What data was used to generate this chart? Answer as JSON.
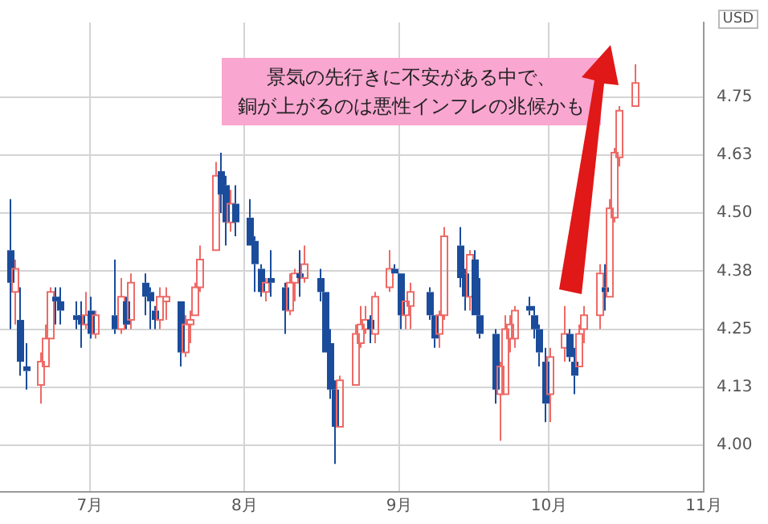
{
  "chart_data": {
    "type": "candlestick",
    "ylabel": "USD",
    "annotations": [
      "景気の先行きに不安がある中で、",
      "銅が上がるのは悪性インフレの兆候かも"
    ],
    "colors": [
      "#1b4c9b",
      "#ee6a66",
      "#1b4c9b",
      "#1b4c9b",
      "#ee6a66",
      "#ee6a66",
      "#ee6a66",
      "#1b4c9b",
      "#1b4c9b",
      "#1b4c9b",
      "#1b4c9b",
      "#ee6a66",
      "#1b4c9b",
      "#ee6a66",
      "#1b4c9b",
      "#ee6a66",
      "#1b4c9b",
      "#ee6a66",
      "#1b4c9b",
      "#1b4c9b",
      "#1b4c9b",
      "#ee6a66",
      "#ee6a66",
      "#1b4c9b",
      "#ee6a66",
      "#ee6a66",
      "#ee6a66",
      "#ee6a66",
      "#ee6a66",
      "#1b4c9b",
      "#1b4c9b",
      "#ee6a66",
      "#1b4c9b",
      "#1b4c9b",
      "#1b4c9b",
      "#1b4c9b",
      "#ee6a66",
      "#1b4c9b",
      "#1b4c9b",
      "#ee6a66",
      "#ee6a66",
      "#1b4c9b",
      "#ee6a66",
      "#1b4c9b",
      "#1b4c9b",
      "#1b4c9b",
      "#1b4c9b",
      "#ee6a66",
      "#ee6a66",
      "#ee6a66",
      "#ee6a66",
      "#1b4c9b",
      "#ee6a66",
      "#ee6a66",
      "#1b4c9b",
      "#1b4c9b",
      "#ee6a66",
      "#ee6a66",
      "#1b4c9b",
      "#1b4c9b",
      "#ee6a66",
      "#ee6a66",
      "#1b4c9b",
      "#1b4c9b",
      "#ee6a66",
      "#1b4c9b",
      "#1b4c9b",
      "#1b4c9b",
      "#ee6a66",
      "#ee6a66",
      "#ee6a66",
      "#ee6a66",
      "#1b4c9b",
      "#1b4c9b",
      "#1b4c9b",
      "#1b4c9b",
      "#ee6a66",
      "#ee6a66",
      "#1b4c9b",
      "#1b4c9b",
      "#ee6a66",
      "#ee6a66",
      "#ee6a66",
      "#1b4c9b",
      "#ee6a66",
      "#ee6a66",
      "#ee6a66",
      "#ee6a66"
    ],
    "x": [
      "--06-15",
      "--06-16",
      "--06-17",
      "--06-18",
      "--06-21",
      "--06-22",
      "--06-23",
      "--06-24",
      "--06-25",
      "--06-28",
      "--06-29",
      "--06-30",
      "--07-01",
      "--07-02",
      "--07-06",
      "--07-07",
      "--07-08",
      "--07-09",
      "--07-12",
      "--07-13",
      "--07-14",
      "--07-15",
      "--07-16",
      "--07-19",
      "--07-20",
      "--07-21",
      "--07-22",
      "--07-23",
      "--07-26",
      "--07-27",
      "--07-28",
      "--07-29",
      "--07-30",
      "--08-02",
      "--08-03",
      "--08-04",
      "--08-05",
      "--08-06",
      "--08-09",
      "--08-10",
      "--08-11",
      "--08-12",
      "--08-13",
      "--08-16",
      "--08-17",
      "--08-18",
      "--08-19",
      "--08-20",
      "--08-23",
      "--08-24",
      "--08-25",
      "--08-26",
      "--08-27",
      "--08-30",
      "--08-31",
      "--09-01",
      "--09-02",
      "--09-03",
      "--09-07",
      "--09-08",
      "--09-09",
      "--09-10",
      "--09-13",
      "--09-14",
      "--09-15",
      "--09-16",
      "--09-17",
      "--09-20",
      "--09-21",
      "--09-22",
      "--09-23",
      "--09-24",
      "--09-27",
      "--09-28",
      "--09-29",
      "--09-30",
      "--10-01",
      "--10-04",
      "--10-05",
      "--10-06",
      "--10-07",
      "--10-08",
      "--10-11",
      "--10-12",
      "--10-13",
      "--10-14",
      "--10-15",
      "--10-18"
    ],
    "ohlc": [
      [
        4.42,
        4.53,
        4.25,
        4.35
      ],
      [
        4.33,
        4.4,
        4.26,
        4.38
      ],
      [
        4.27,
        4.34,
        4.15,
        4.18
      ],
      [
        4.17,
        4.22,
        4.12,
        4.16
      ],
      [
        4.13,
        4.2,
        4.09,
        4.18
      ],
      [
        4.17,
        4.26,
        4.17,
        4.23
      ],
      [
        4.23,
        4.34,
        4.23,
        4.33
      ],
      [
        4.32,
        4.34,
        4.26,
        4.31
      ],
      [
        4.31,
        4.34,
        4.26,
        4.29
      ],
      [
        4.28,
        4.31,
        4.25,
        4.27
      ],
      [
        4.28,
        4.31,
        4.21,
        4.26
      ],
      [
        4.26,
        4.33,
        4.25,
        4.28
      ],
      [
        4.29,
        4.32,
        4.23,
        4.24
      ],
      [
        4.24,
        4.29,
        4.23,
        4.28
      ],
      [
        4.28,
        4.4,
        4.24,
        4.25
      ],
      [
        4.25,
        4.36,
        4.24,
        4.32
      ],
      [
        4.31,
        4.32,
        4.25,
        4.26
      ],
      [
        4.27,
        4.37,
        4.25,
        4.35
      ],
      [
        4.35,
        4.37,
        4.28,
        4.32
      ],
      [
        4.33,
        4.34,
        4.25,
        4.31
      ],
      [
        4.29,
        4.3,
        4.25,
        4.27
      ],
      [
        4.27,
        4.34,
        4.25,
        4.32
      ],
      [
        4.31,
        4.34,
        4.27,
        4.32
      ],
      [
        4.31,
        4.31,
        4.17,
        4.2
      ],
      [
        4.2,
        4.28,
        4.19,
        4.26
      ],
      [
        4.26,
        4.29,
        4.22,
        4.27
      ],
      [
        4.28,
        4.35,
        4.28,
        4.34
      ],
      [
        4.34,
        4.43,
        4.33,
        4.4
      ],
      [
        4.42,
        4.61,
        4.42,
        4.58
      ],
      [
        4.59,
        4.63,
        4.5,
        4.54
      ],
      [
        4.56,
        4.58,
        4.43,
        4.48
      ],
      [
        4.48,
        4.55,
        4.46,
        4.52
      ],
      [
        4.52,
        4.56,
        4.45,
        4.48
      ],
      [
        4.49,
        4.53,
        4.43,
        4.43
      ],
      [
        4.44,
        4.45,
        4.33,
        4.39
      ],
      [
        4.38,
        4.39,
        4.32,
        4.33
      ],
      [
        4.33,
        4.36,
        4.31,
        4.35
      ],
      [
        4.36,
        4.42,
        4.32,
        4.35
      ],
      [
        4.34,
        4.35,
        4.24,
        4.29
      ],
      [
        4.29,
        4.37,
        4.28,
        4.35
      ],
      [
        4.35,
        4.38,
        4.31,
        4.37
      ],
      [
        4.37,
        4.42,
        4.32,
        4.36
      ],
      [
        4.36,
        4.43,
        4.35,
        4.39
      ],
      [
        4.36,
        4.38,
        4.31,
        4.33
      ],
      [
        4.33,
        4.33,
        4.2,
        4.2
      ],
      [
        4.22,
        4.25,
        4.1,
        4.12
      ],
      [
        4.12,
        4.14,
        3.96,
        4.04
      ],
      [
        4.04,
        4.15,
        4.04,
        4.14
      ],
      [
        4.13,
        4.26,
        4.13,
        4.24
      ],
      [
        4.22,
        4.3,
        4.21,
        4.26
      ],
      [
        4.25,
        4.3,
        4.24,
        4.27
      ],
      [
        4.27,
        4.28,
        4.22,
        4.25
      ],
      [
        4.24,
        4.33,
        4.22,
        4.32
      ],
      [
        4.34,
        4.42,
        4.33,
        4.38
      ],
      [
        4.38,
        4.39,
        4.37,
        4.37
      ],
      [
        4.37,
        4.37,
        4.25,
        4.28
      ],
      [
        4.28,
        4.31,
        4.25,
        4.31
      ],
      [
        4.3,
        4.35,
        4.25,
        4.33
      ],
      [
        4.33,
        4.34,
        4.27,
        4.28
      ],
      [
        4.28,
        4.28,
        4.21,
        4.23
      ],
      [
        4.24,
        4.29,
        4.21,
        4.28
      ],
      [
        4.28,
        4.47,
        4.27,
        4.45
      ],
      [
        4.43,
        4.47,
        4.34,
        4.36
      ],
      [
        4.37,
        4.38,
        4.29,
        4.32
      ],
      [
        4.32,
        4.42,
        4.29,
        4.41
      ],
      [
        4.4,
        4.42,
        4.28,
        4.28
      ],
      [
        4.28,
        4.36,
        4.23,
        4.24
      ],
      [
        4.24,
        4.25,
        4.09,
        4.12
      ],
      [
        4.11,
        4.18,
        4.01,
        4.17
      ],
      [
        4.11,
        4.28,
        4.11,
        4.25
      ],
      [
        4.23,
        4.28,
        4.2,
        4.26
      ],
      [
        4.23,
        4.3,
        4.21,
        4.29
      ],
      [
        4.3,
        4.32,
        4.28,
        4.29
      ],
      [
        4.28,
        4.3,
        4.23,
        4.25
      ],
      [
        4.25,
        4.26,
        4.17,
        4.2
      ],
      [
        4.18,
        4.21,
        4.05,
        4.09
      ],
      [
        4.11,
        4.21,
        4.05,
        4.19
      ],
      [
        4.21,
        4.3,
        4.18,
        4.24
      ],
      [
        4.24,
        4.25,
        4.18,
        4.19
      ],
      [
        4.18,
        4.21,
        4.11,
        4.15
      ],
      [
        4.17,
        4.26,
        4.17,
        4.24
      ],
      [
        4.25,
        4.3,
        4.22,
        4.28
      ],
      [
        4.28,
        4.39,
        4.25,
        4.37
      ],
      [
        4.34,
        4.39,
        4.29,
        4.33
      ],
      [
        4.32,
        4.53,
        4.32,
        4.51
      ],
      [
        4.49,
        4.64,
        4.48,
        4.63
      ],
      [
        4.62,
        4.73,
        4.6,
        4.72
      ],
      [
        4.73,
        4.82,
        4.73,
        4.78
      ]
    ],
    "xlim": [
      "--06-13",
      "--11-01"
    ],
    "xticks": [
      {
        "value": "--07-01",
        "label": "7月"
      },
      {
        "value": "--08-01",
        "label": "8月"
      },
      {
        "value": "--09-01",
        "label": "9月"
      },
      {
        "value": "--10-01",
        "label": "10月"
      },
      {
        "value": "--11-01",
        "label": "11月"
      }
    ],
    "ylim": [
      3.9,
      4.91
    ],
    "yticks": [
      {
        "value": 4.0,
        "label": "4.00"
      },
      {
        "value": 4.125,
        "label": "4.13"
      },
      {
        "value": 4.25,
        "label": "4.25"
      },
      {
        "value": 4.375,
        "label": "4.38"
      },
      {
        "value": 4.5,
        "label": "4.50"
      },
      {
        "value": 4.625,
        "label": "4.63"
      },
      {
        "value": 4.75,
        "label": "4.75"
      }
    ],
    "grid": true
  }
}
